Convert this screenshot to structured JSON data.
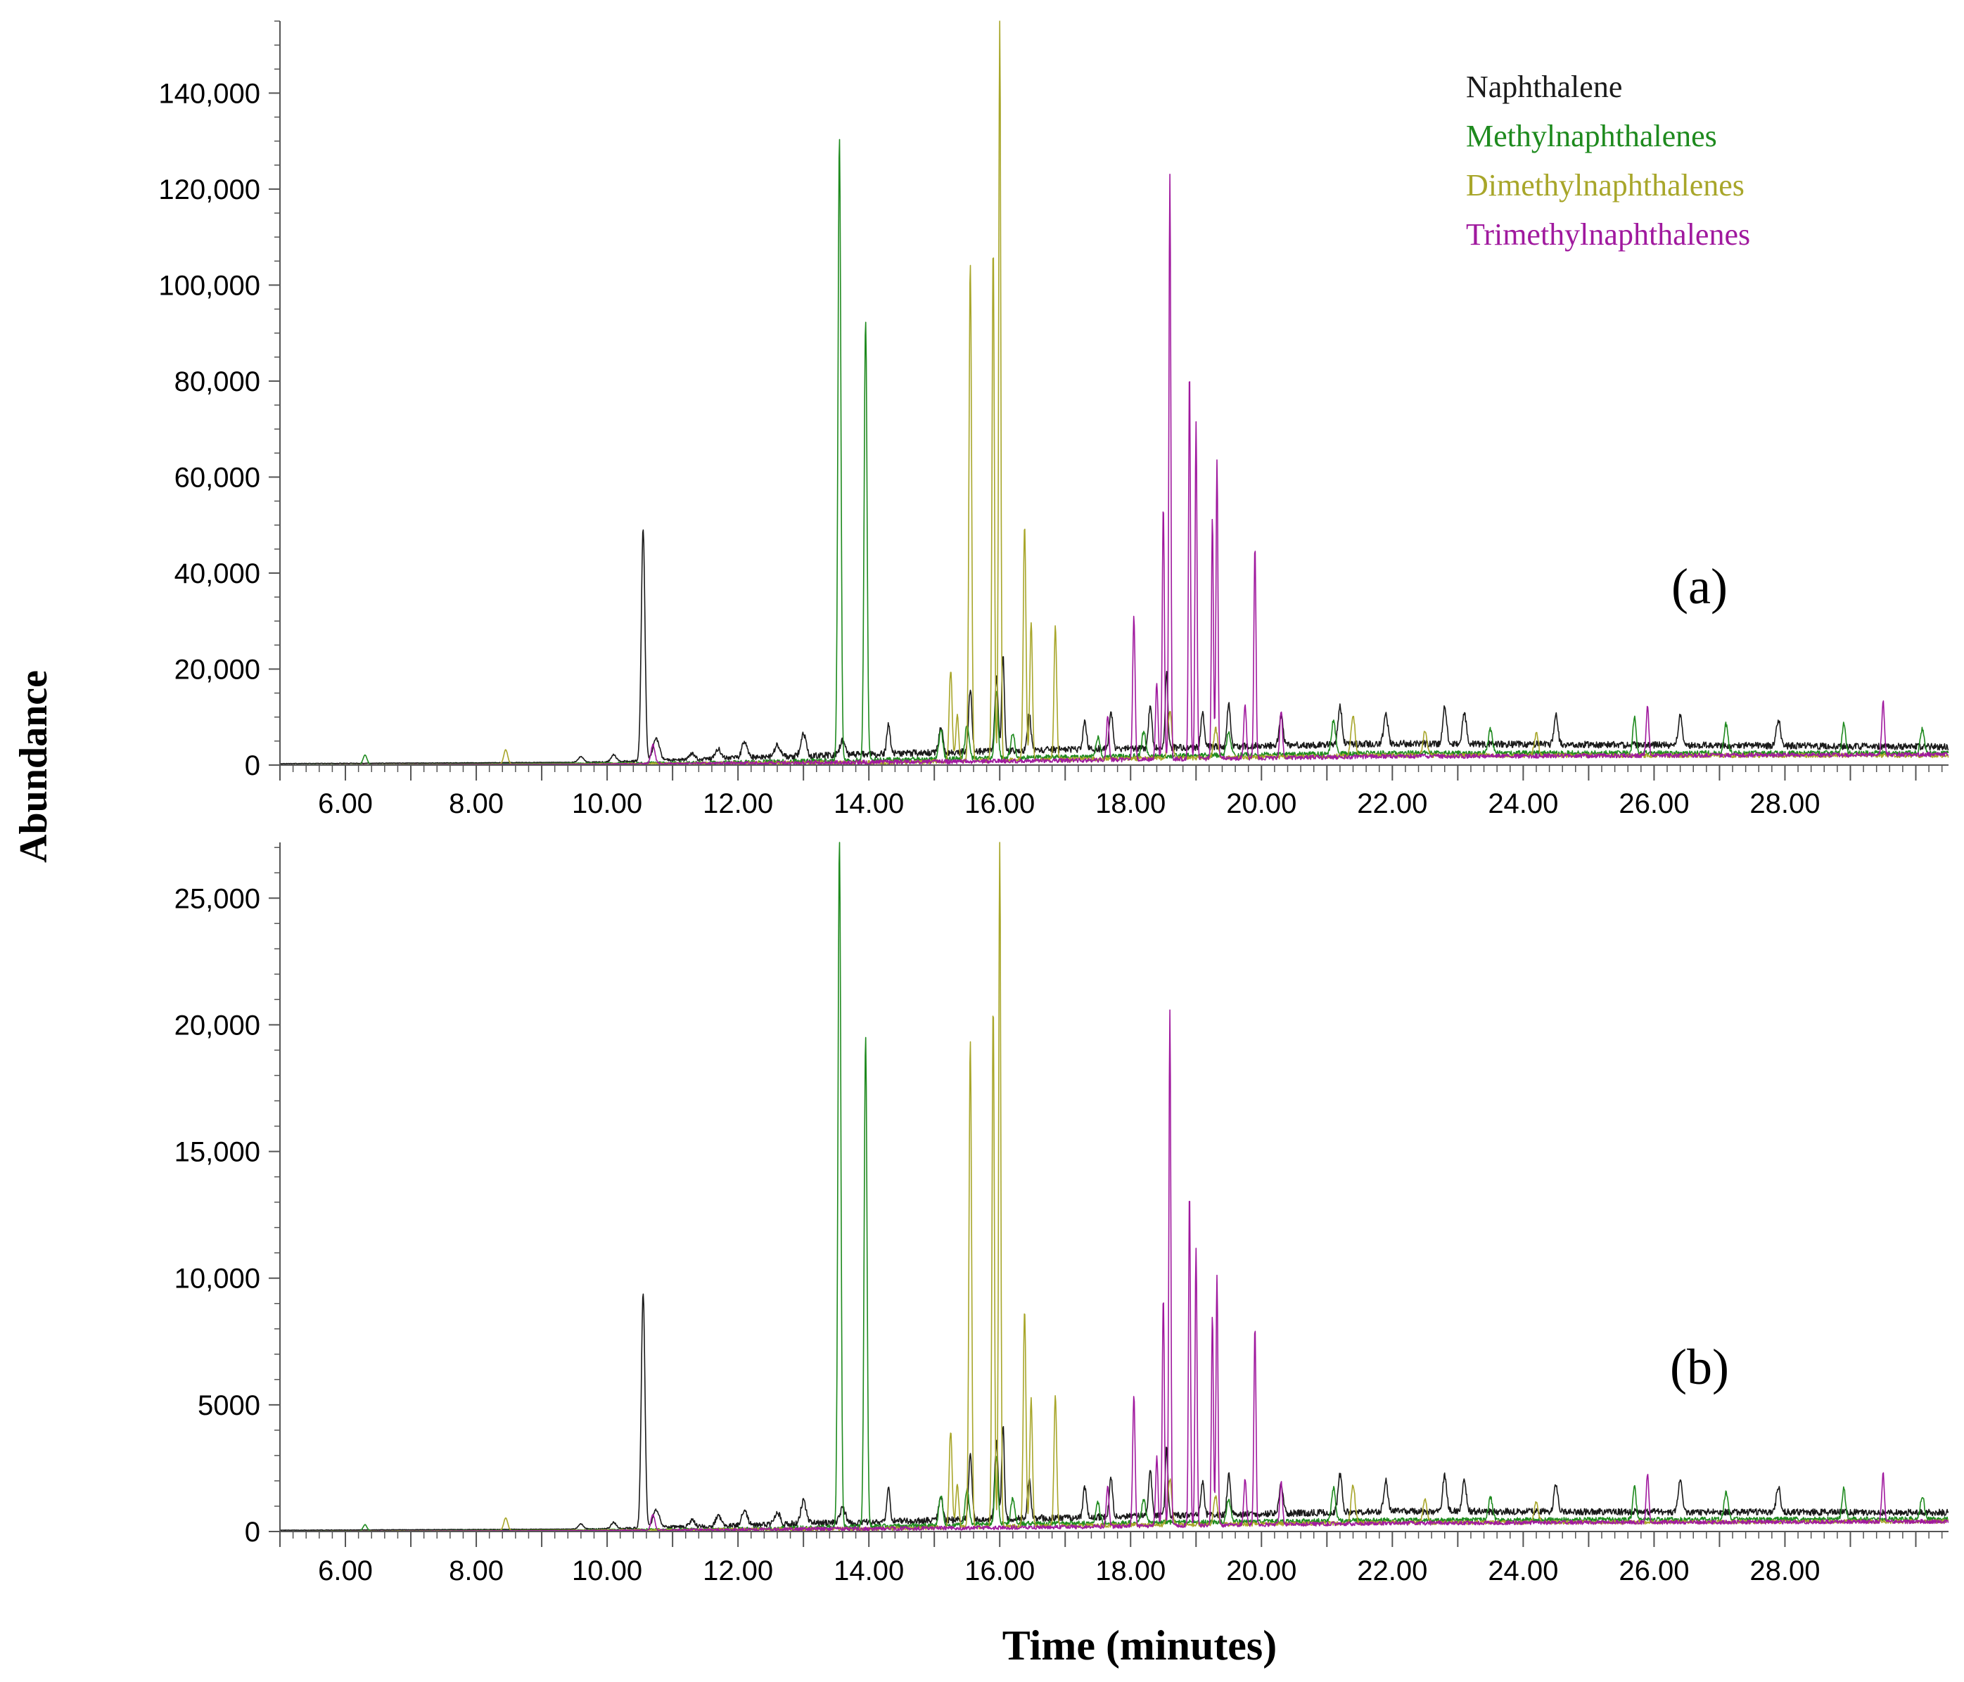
{
  "chart_data": [
    {
      "id": "a",
      "type": "line",
      "panel_label": "(a)",
      "xlim": [
        5.0,
        30.5
      ],
      "ylim": [
        0,
        155000
      ],
      "x_ticks": [
        6,
        8,
        10,
        12,
        14,
        16,
        18,
        20,
        22,
        24,
        26,
        28
      ],
      "x_tick_labels": [
        "6.00",
        "8.00",
        "10.00",
        "12.00",
        "14.00",
        "16.00",
        "18.00",
        "20.00",
        "22.00",
        "24.00",
        "26.00",
        "28.00"
      ],
      "y_ticks": [
        0,
        20000,
        40000,
        60000,
        80000,
        100000,
        120000,
        140000
      ],
      "y_tick_labels": [
        "0",
        "20,000",
        "40,000",
        "60,000",
        "80,000",
        "100,000",
        "120,000",
        "140,000"
      ],
      "y_minor_step": 5000,
      "legend": [
        {
          "label": "Naphthalene",
          "color": "#1a1a1a"
        },
        {
          "label": "Methylnaphthalenes",
          "color": "#1e8a1e"
        },
        {
          "label": "Dimethylnaphthalenes",
          "color": "#a8a62a"
        },
        {
          "label": "Trimethylnaphthalenes",
          "color": "#a0199e"
        }
      ],
      "series": [
        {
          "name": "Naphthalene",
          "color": "#1a1a1a",
          "baseline": [
            [
              5.0,
              300
            ],
            [
              10.0,
              600
            ],
            [
              12.0,
              1500
            ],
            [
              16.0,
              3000
            ],
            [
              22.0,
              4500
            ],
            [
              30.5,
              3800
            ]
          ],
          "peaks": [
            [
              9.6,
              1200,
              0.04
            ],
            [
              10.1,
              1500,
              0.04
            ],
            [
              10.55,
              48500,
              0.028
            ],
            [
              10.75,
              4500,
              0.05
            ],
            [
              11.3,
              1200,
              0.04
            ],
            [
              11.7,
              2000,
              0.04
            ],
            [
              12.1,
              3500,
              0.04
            ],
            [
              12.6,
              2500,
              0.04
            ],
            [
              13.0,
              4500,
              0.04
            ],
            [
              13.6,
              3000,
              0.04
            ],
            [
              14.3,
              6500,
              0.025
            ],
            [
              15.1,
              5000,
              0.03
            ],
            [
              15.55,
              13000,
              0.025
            ],
            [
              15.95,
              15000,
              0.025
            ],
            [
              16.05,
              20000,
              0.02
            ],
            [
              16.45,
              8000,
              0.025
            ],
            [
              17.3,
              6000,
              0.025
            ],
            [
              17.7,
              8000,
              0.025
            ],
            [
              18.3,
              9000,
              0.025
            ],
            [
              18.55,
              16000,
              0.02
            ],
            [
              19.1,
              7000,
              0.025
            ],
            [
              19.5,
              9000,
              0.025
            ],
            [
              20.3,
              6000,
              0.03
            ],
            [
              21.2,
              8000,
              0.03
            ],
            [
              21.9,
              6500,
              0.03
            ],
            [
              22.8,
              7500,
              0.03
            ],
            [
              23.1,
              6500,
              0.03
            ],
            [
              24.5,
              6000,
              0.03
            ],
            [
              26.4,
              6500,
              0.03
            ],
            [
              27.9,
              5500,
              0.03
            ]
          ],
          "noise": 700
        },
        {
          "name": "Methylnaphthalenes",
          "color": "#1e8a1e",
          "baseline": [
            [
              5.0,
              0
            ],
            [
              12.0,
              600
            ],
            [
              16.0,
              1500
            ],
            [
              22.0,
              2500
            ],
            [
              30.5,
              2500
            ]
          ],
          "peaks": [
            [
              6.3,
              2000,
              0.03
            ],
            [
              13.55,
              130000,
              0.022
            ],
            [
              13.95,
              92000,
              0.022
            ],
            [
              15.1,
              6000,
              0.03
            ],
            [
              15.5,
              7000,
              0.03
            ],
            [
              15.95,
              14000,
              0.025
            ],
            [
              16.2,
              5000,
              0.03
            ],
            [
              17.5,
              4000,
              0.03
            ],
            [
              18.2,
              5000,
              0.03
            ],
            [
              19.5,
              5000,
              0.03
            ],
            [
              21.1,
              7000,
              0.03
            ],
            [
              23.5,
              5000,
              0.03
            ],
            [
              25.7,
              7500,
              0.025
            ],
            [
              27.1,
              6000,
              0.03
            ],
            [
              28.9,
              6500,
              0.025
            ],
            [
              30.1,
              5000,
              0.03
            ]
          ],
          "noise": 500
        },
        {
          "name": "Dimethylnaphthalenes",
          "color": "#a8a62a",
          "baseline": [
            [
              5.0,
              0
            ],
            [
              14.0,
              500
            ],
            [
              16.0,
              1000
            ],
            [
              22.0,
              2000
            ],
            [
              30.5,
              2000
            ]
          ],
          "peaks": [
            [
              8.45,
              3000,
              0.03
            ],
            [
              15.25,
              19000,
              0.022
            ],
            [
              15.35,
              9500,
              0.022
            ],
            [
              15.55,
              104000,
              0.02
            ],
            [
              15.9,
              107000,
              0.018
            ],
            [
              16.0,
              155000,
              0.016
            ],
            [
              16.38,
              49000,
              0.02
            ],
            [
              16.48,
              28500,
              0.02
            ],
            [
              16.85,
              28000,
              0.02
            ],
            [
              18.6,
              10000,
              0.03
            ],
            [
              19.3,
              6000,
              0.03
            ],
            [
              21.4,
              8500,
              0.03
            ],
            [
              22.5,
              5000,
              0.03
            ],
            [
              24.2,
              4500,
              0.03
            ]
          ],
          "noise": 450
        },
        {
          "name": "Trimethylnaphthalenes",
          "color": "#a0199e",
          "baseline": [
            [
              5.0,
              0
            ],
            [
              10.0,
              200
            ],
            [
              16.0,
              800
            ],
            [
              22.0,
              1800
            ],
            [
              30.5,
              2200
            ]
          ],
          "peaks": [
            [
              10.7,
              4000,
              0.03
            ],
            [
              17.65,
              9000,
              0.02
            ],
            [
              18.05,
              30000,
              0.018
            ],
            [
              18.4,
              16000,
              0.018
            ],
            [
              18.5,
              53000,
              0.016
            ],
            [
              18.6,
              122000,
              0.015
            ],
            [
              18.9,
              81000,
              0.015
            ],
            [
              19.0,
              70000,
              0.015
            ],
            [
              19.25,
              50000,
              0.015
            ],
            [
              19.32,
              62000,
              0.015
            ],
            [
              19.75,
              11000,
              0.02
            ],
            [
              19.9,
              44000,
              0.016
            ],
            [
              20.3,
              10000,
              0.02
            ],
            [
              25.9,
              10000,
              0.02
            ],
            [
              29.5,
              11000,
              0.02
            ]
          ],
          "noise": 450
        }
      ]
    },
    {
      "id": "b",
      "type": "line",
      "panel_label": "(b)",
      "xlim": [
        5.0,
        30.5
      ],
      "ylim": [
        0,
        27200
      ],
      "x_ticks": [
        6,
        8,
        10,
        12,
        14,
        16,
        18,
        20,
        22,
        24,
        26,
        28
      ],
      "x_tick_labels": [
        "6.00",
        "8.00",
        "10.00",
        "12.00",
        "14.00",
        "16.00",
        "18.00",
        "20.00",
        "22.00",
        "24.00",
        "26.00",
        "28.00"
      ],
      "y_ticks": [
        0,
        5000,
        10000,
        15000,
        20000,
        25000
      ],
      "y_tick_labels": [
        "0",
        "5000",
        "10,000",
        "15,000",
        "20,000",
        "25,000"
      ],
      "y_minor_step": 1000,
      "series": [
        {
          "name": "Naphthalene",
          "color": "#1a1a1a",
          "baseline": [
            [
              5.0,
              50
            ],
            [
              10.0,
              100
            ],
            [
              12.0,
              250
            ],
            [
              16.0,
              500
            ],
            [
              22.0,
              800
            ],
            [
              30.5,
              750
            ]
          ],
          "peaks": [
            [
              9.6,
              200,
              0.04
            ],
            [
              10.1,
              250,
              0.04
            ],
            [
              10.55,
              9300,
              0.028
            ],
            [
              10.75,
              700,
              0.05
            ],
            [
              11.3,
              250,
              0.04
            ],
            [
              11.7,
              400,
              0.04
            ],
            [
              12.1,
              600,
              0.04
            ],
            [
              12.6,
              500,
              0.04
            ],
            [
              13.0,
              900,
              0.04
            ],
            [
              13.6,
              600,
              0.04
            ],
            [
              14.3,
              1300,
              0.025
            ],
            [
              15.1,
              1000,
              0.03
            ],
            [
              15.55,
              2500,
              0.025
            ],
            [
              15.95,
              3000,
              0.025
            ],
            [
              16.05,
              3700,
              0.02
            ],
            [
              16.45,
              1500,
              0.025
            ],
            [
              17.3,
              1200,
              0.025
            ],
            [
              17.7,
              1500,
              0.025
            ],
            [
              18.3,
              1800,
              0.025
            ],
            [
              18.55,
              2700,
              0.02
            ],
            [
              19.1,
              1300,
              0.025
            ],
            [
              19.5,
              1600,
              0.025
            ],
            [
              20.3,
              1200,
              0.03
            ],
            [
              21.2,
              1500,
              0.03
            ],
            [
              21.9,
              1200,
              0.03
            ],
            [
              22.8,
              1400,
              0.03
            ],
            [
              23.1,
              1200,
              0.03
            ],
            [
              24.5,
              1100,
              0.03
            ],
            [
              26.4,
              1200,
              0.03
            ],
            [
              27.9,
              1000,
              0.03
            ]
          ],
          "noise": 130
        },
        {
          "name": "Methylnaphthalenes",
          "color": "#1e8a1e",
          "baseline": [
            [
              5.0,
              0
            ],
            [
              12.0,
              100
            ],
            [
              16.0,
              300
            ],
            [
              22.0,
              450
            ],
            [
              30.5,
              500
            ]
          ],
          "peaks": [
            [
              6.3,
              250,
              0.03
            ],
            [
              13.55,
              27200,
              0.022
            ],
            [
              13.95,
              19300,
              0.022
            ],
            [
              15.1,
              1200,
              0.03
            ],
            [
              15.5,
              1400,
              0.03
            ],
            [
              15.95,
              2700,
              0.025
            ],
            [
              16.2,
              1000,
              0.03
            ],
            [
              17.5,
              800,
              0.03
            ],
            [
              18.2,
              900,
              0.03
            ],
            [
              19.5,
              900,
              0.03
            ],
            [
              21.1,
              1300,
              0.03
            ],
            [
              23.5,
              900,
              0.03
            ],
            [
              25.7,
              1300,
              0.025
            ],
            [
              27.1,
              1100,
              0.03
            ],
            [
              28.9,
              1200,
              0.025
            ],
            [
              30.1,
              900,
              0.03
            ]
          ],
          "noise": 90
        },
        {
          "name": "Dimethylnaphthalenes",
          "color": "#a8a62a",
          "baseline": [
            [
              5.0,
              0
            ],
            [
              14.0,
              100
            ],
            [
              16.0,
              200
            ],
            [
              22.0,
              350
            ],
            [
              30.5,
              400
            ]
          ],
          "peaks": [
            [
              8.45,
              500,
              0.03
            ],
            [
              15.25,
              3800,
              0.022
            ],
            [
              15.35,
              1700,
              0.022
            ],
            [
              15.55,
              19200,
              0.02
            ],
            [
              15.9,
              20600,
              0.018
            ],
            [
              16.0,
              27200,
              0.016
            ],
            [
              16.38,
              8500,
              0.02
            ],
            [
              16.48,
              5000,
              0.02
            ],
            [
              16.85,
              5200,
              0.02
            ],
            [
              18.6,
              1800,
              0.03
            ],
            [
              19.3,
              1100,
              0.03
            ],
            [
              21.4,
              1500,
              0.03
            ],
            [
              22.5,
              900,
              0.03
            ],
            [
              24.2,
              800,
              0.03
            ]
          ],
          "noise": 80
        },
        {
          "name": "Trimethylnaphthalenes",
          "color": "#a0199e",
          "baseline": [
            [
              5.0,
              0
            ],
            [
              10.0,
              40
            ],
            [
              16.0,
              150
            ],
            [
              22.0,
              330
            ],
            [
              30.5,
              400
            ]
          ],
          "peaks": [
            [
              10.7,
              600,
              0.03
            ],
            [
              17.65,
              1600,
              0.02
            ],
            [
              18.05,
              5200,
              0.018
            ],
            [
              18.4,
              2700,
              0.018
            ],
            [
              18.5,
              9000,
              0.016
            ],
            [
              18.6,
              20400,
              0.015
            ],
            [
              18.9,
              13200,
              0.015
            ],
            [
              19.0,
              11000,
              0.015
            ],
            [
              19.25,
              8300,
              0.015
            ],
            [
              19.32,
              9800,
              0.015
            ],
            [
              19.75,
              1800,
              0.02
            ],
            [
              19.9,
              7800,
              0.016
            ],
            [
              20.3,
              1700,
              0.02
            ],
            [
              25.9,
              1900,
              0.02
            ],
            [
              29.5,
              1900,
              0.02
            ]
          ],
          "noise": 80
        }
      ]
    }
  ],
  "axis": {
    "ylabel": "Abundance",
    "xlabel": "Time (minutes)"
  }
}
